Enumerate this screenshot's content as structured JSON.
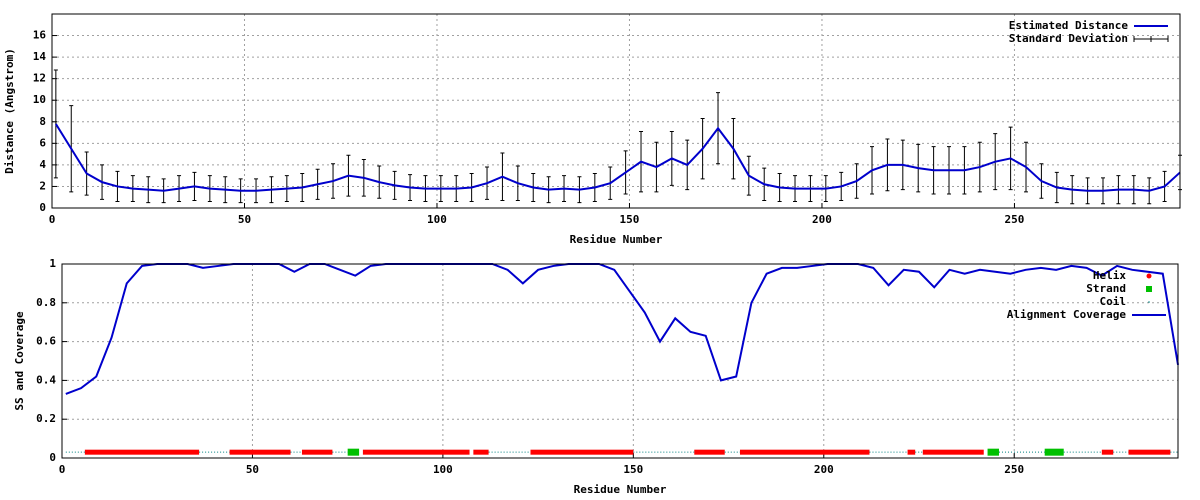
{
  "chart_data": [
    {
      "type": "line",
      "xlabel": "Residue Number",
      "ylabel": "Distance (Angstrom)",
      "x": [
        1,
        5,
        9,
        13,
        17,
        21,
        25,
        29,
        33,
        37,
        41,
        45,
        49,
        53,
        57,
        61,
        65,
        69,
        73,
        77,
        81,
        85,
        89,
        93,
        97,
        101,
        105,
        109,
        113,
        117,
        121,
        125,
        129,
        133,
        137,
        141,
        145,
        149,
        153,
        157,
        161,
        165,
        169,
        173,
        177,
        181,
        185,
        189,
        193,
        197,
        201,
        205,
        209,
        213,
        217,
        221,
        225,
        229,
        233,
        237,
        241,
        245,
        249,
        253,
        257,
        261,
        265,
        269,
        273,
        277,
        281,
        285,
        289,
        293
      ],
      "series": [
        {
          "name": "Estimated Distance",
          "color": "#0000cc",
          "values": [
            7.8,
            5.5,
            3.2,
            2.4,
            2.0,
            1.8,
            1.7,
            1.6,
            1.8,
            2.0,
            1.8,
            1.7,
            1.6,
            1.6,
            1.7,
            1.8,
            1.9,
            2.2,
            2.5,
            3.0,
            2.8,
            2.4,
            2.1,
            1.9,
            1.8,
            1.8,
            1.8,
            1.9,
            2.3,
            2.9,
            2.3,
            1.9,
            1.7,
            1.8,
            1.7,
            1.9,
            2.3,
            3.3,
            4.3,
            3.8,
            4.6,
            4.0,
            5.5,
            7.4,
            5.5,
            3.0,
            2.2,
            1.9,
            1.8,
            1.8,
            1.8,
            2.0,
            2.5,
            3.5,
            4.0,
            4.0,
            3.7,
            3.5,
            3.5,
            3.5,
            3.8,
            4.3,
            4.6,
            3.8,
            2.5,
            1.9,
            1.7,
            1.6,
            1.6,
            1.7,
            1.7,
            1.6,
            2.0,
            3.3
          ]
        }
      ],
      "error_bars": {
        "name": "Standard Deviation",
        "color": "#000000",
        "values": [
          5.0,
          4.0,
          2.0,
          1.6,
          1.4,
          1.2,
          1.2,
          1.1,
          1.2,
          1.3,
          1.2,
          1.2,
          1.1,
          1.1,
          1.2,
          1.2,
          1.3,
          1.4,
          1.6,
          1.9,
          1.7,
          1.5,
          1.3,
          1.2,
          1.2,
          1.2,
          1.2,
          1.3,
          1.5,
          2.2,
          1.6,
          1.3,
          1.2,
          1.2,
          1.2,
          1.3,
          1.5,
          2.0,
          2.8,
          2.3,
          2.5,
          2.3,
          2.8,
          3.3,
          2.8,
          1.8,
          1.5,
          1.3,
          1.2,
          1.2,
          1.2,
          1.3,
          1.6,
          2.2,
          2.4,
          2.3,
          2.2,
          2.2,
          2.2,
          2.2,
          2.3,
          2.6,
          2.9,
          2.3,
          1.6,
          1.4,
          1.3,
          1.2,
          1.2,
          1.3,
          1.3,
          1.2,
          1.4,
          1.6
        ]
      },
      "xlim": [
        0,
        293
      ],
      "xticks": [
        0,
        50,
        100,
        150,
        200,
        250
      ],
      "ylim": [
        0,
        18
      ],
      "yticks": [
        0,
        2,
        4,
        6,
        8,
        10,
        12,
        14,
        16
      ],
      "grid": true,
      "legend": "top-right"
    },
    {
      "type": "line",
      "xlabel": "Residue Number",
      "ylabel": "SS and Coverage",
      "x": [
        1,
        5,
        9,
        13,
        17,
        21,
        25,
        29,
        33,
        37,
        41,
        45,
        49,
        53,
        57,
        61,
        65,
        69,
        73,
        77,
        81,
        85,
        89,
        93,
        97,
        101,
        105,
        109,
        113,
        117,
        121,
        125,
        129,
        133,
        137,
        141,
        145,
        149,
        153,
        157,
        161,
        165,
        169,
        173,
        177,
        181,
        185,
        189,
        193,
        197,
        201,
        205,
        209,
        213,
        217,
        221,
        225,
        229,
        233,
        237,
        241,
        245,
        249,
        253,
        257,
        261,
        265,
        269,
        273,
        277,
        281,
        285,
        289,
        293
      ],
      "ss": [
        {
          "name": "Helix",
          "color": "#ff0000",
          "y": 0.03,
          "ranges": [
            [
              6,
              36
            ],
            [
              44,
              60
            ],
            [
              63,
              71
            ],
            [
              79,
              107
            ],
            [
              108,
              112
            ],
            [
              123,
              150
            ],
            [
              166,
              174
            ],
            [
              178,
              212
            ],
            [
              222,
              224
            ],
            [
              226,
              242
            ],
            [
              273,
              276
            ],
            [
              280,
              291
            ]
          ]
        },
        {
          "name": "Strand",
          "color": "#00c000",
          "y": 0.03,
          "ranges": [
            [
              75,
              78
            ],
            [
              243,
              246
            ],
            [
              258,
              263
            ]
          ]
        },
        {
          "name": "Coil",
          "color": "#008080",
          "y": 0.03,
          "ranges": [
            [
              1,
              6
            ],
            [
              36,
              44
            ],
            [
              60,
              63
            ],
            [
              71,
              75
            ],
            [
              112,
              123
            ],
            [
              150,
              166
            ],
            [
              174,
              178
            ],
            [
              212,
              222
            ],
            [
              224,
              226
            ],
            [
              246,
              258
            ],
            [
              263,
              273
            ],
            [
              276,
              280
            ],
            [
              291,
              293
            ]
          ]
        }
      ],
      "series": [
        {
          "name": "Alignment Coverage",
          "color": "#0000cc",
          "values": [
            0.33,
            0.36,
            0.42,
            0.62,
            0.9,
            0.99,
            1.0,
            1.0,
            1.0,
            0.98,
            0.99,
            1.0,
            1.0,
            1.0,
            1.0,
            0.96,
            1.0,
            1.0,
            0.97,
            0.94,
            0.99,
            1.0,
            1.0,
            1.0,
            1.0,
            1.0,
            1.0,
            1.0,
            1.0,
            0.97,
            0.9,
            0.97,
            0.99,
            1.0,
            1.0,
            1.0,
            0.97,
            0.86,
            0.75,
            0.6,
            0.72,
            0.65,
            0.63,
            0.4,
            0.42,
            0.8,
            0.95,
            0.98,
            0.98,
            0.99,
            1.0,
            1.0,
            1.0,
            0.98,
            0.89,
            0.97,
            0.96,
            0.88,
            0.97,
            0.95,
            0.97,
            0.96,
            0.95,
            0.97,
            0.98,
            0.97,
            0.99,
            0.98,
            0.94,
            0.99,
            0.97,
            0.96,
            0.95,
            0.48
          ]
        }
      ],
      "xlim": [
        0,
        293
      ],
      "xticks": [
        0,
        50,
        100,
        150,
        200,
        250
      ],
      "ylim": [
        0,
        1
      ],
      "yticks": [
        0,
        0.2,
        0.4,
        0.6,
        0.8,
        1
      ],
      "grid": true,
      "legend": "top-right"
    }
  ]
}
